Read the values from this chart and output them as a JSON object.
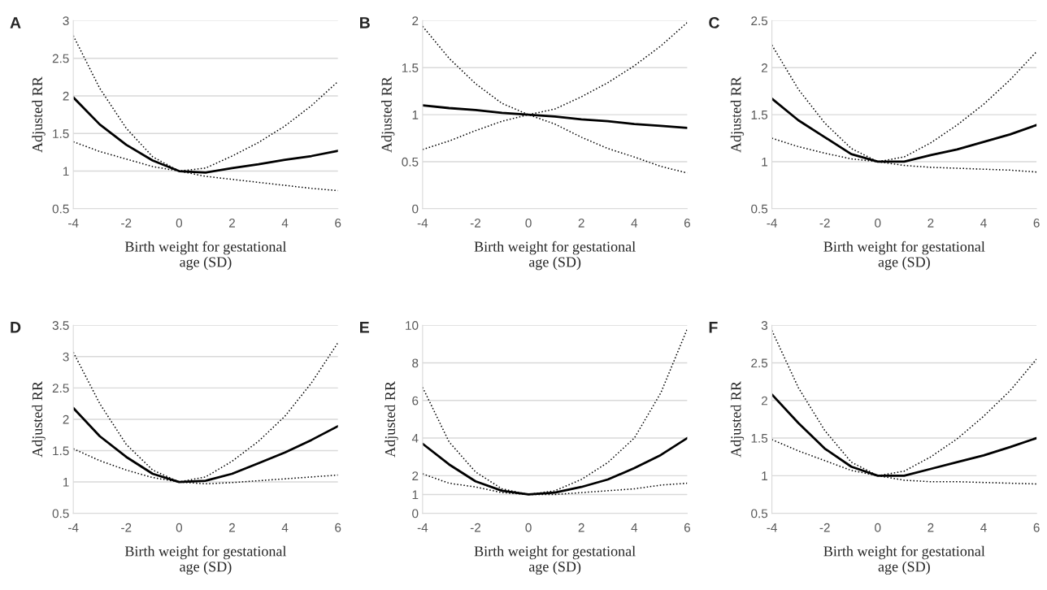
{
  "chart_data": [
    {
      "type": "line",
      "title": "A",
      "xlabel": "Birth weight for gestational\nage (SD)",
      "ylabel": "Adjusted RR",
      "x": [
        -4,
        -3,
        -2,
        -1,
        0,
        1,
        2,
        3,
        4,
        5,
        6
      ],
      "xlim": [
        -4,
        6
      ],
      "xticks": [
        -4,
        -2,
        0,
        2,
        4,
        6
      ],
      "ylim": [
        0.5,
        3
      ],
      "yticks": [
        0.5,
        1,
        1.5,
        2,
        2.5,
        3
      ],
      "grid": "y",
      "series": [
        {
          "color": "#000000",
          "line_style": "solid",
          "values": [
            1.98,
            1.62,
            1.35,
            1.14,
            1.0,
            0.98,
            1.04,
            1.09,
            1.15,
            1.2,
            1.27
          ]
        },
        {
          "color": "#000000",
          "line_style": "dotted",
          "values": [
            2.8,
            2.1,
            1.57,
            1.19,
            1.0,
            1.04,
            1.2,
            1.38,
            1.6,
            1.87,
            2.19
          ]
        },
        {
          "color": "#000000",
          "line_style": "dotted",
          "values": [
            1.39,
            1.26,
            1.16,
            1.06,
            1.0,
            0.93,
            0.89,
            0.85,
            0.81,
            0.77,
            0.74
          ]
        }
      ]
    },
    {
      "type": "line",
      "title": "B",
      "xlabel": "Birth weight for gestational\nage (SD)",
      "ylabel": "Adjusted RR",
      "x": [
        -4,
        -3,
        -2,
        -1,
        0,
        1,
        2,
        3,
        4,
        5,
        6
      ],
      "xlim": [
        -4,
        6
      ],
      "xticks": [
        -4,
        -2,
        0,
        2,
        4,
        6
      ],
      "ylim": [
        0,
        2
      ],
      "yticks": [
        0,
        0.5,
        1,
        1.5,
        2
      ],
      "grid": "y",
      "series": [
        {
          "color": "#000000",
          "line_style": "solid",
          "values": [
            1.1,
            1.07,
            1.05,
            1.02,
            1.0,
            0.98,
            0.95,
            0.93,
            0.9,
            0.88,
            0.86
          ]
        },
        {
          "color": "#000000",
          "line_style": "dotted",
          "values": [
            1.94,
            1.6,
            1.33,
            1.12,
            1.0,
            0.9,
            0.76,
            0.64,
            0.55,
            0.45,
            0.38
          ]
        },
        {
          "color": "#000000",
          "line_style": "dotted",
          "values": [
            0.63,
            0.72,
            0.83,
            0.93,
            1.0,
            1.06,
            1.19,
            1.34,
            1.52,
            1.73,
            1.98
          ]
        }
      ]
    },
    {
      "type": "line",
      "title": "C",
      "xlabel": "Birth weight for gestational\nage (SD)",
      "ylabel": "Adjusted RR",
      "x": [
        -4,
        -3,
        -2,
        -1,
        0,
        1,
        2,
        3,
        4,
        5,
        6
      ],
      "xlim": [
        -4,
        6
      ],
      "xticks": [
        -4,
        -2,
        0,
        2,
        4,
        6
      ],
      "ylim": [
        0.5,
        2.5
      ],
      "yticks": [
        0.5,
        1,
        1.5,
        2,
        2.5
      ],
      "grid": "y",
      "series": [
        {
          "color": "#000000",
          "line_style": "solid",
          "values": [
            1.67,
            1.44,
            1.26,
            1.08,
            1.0,
            1.0,
            1.07,
            1.13,
            1.21,
            1.29,
            1.39
          ]
        },
        {
          "color": "#000000",
          "line_style": "dotted",
          "values": [
            2.24,
            1.77,
            1.41,
            1.14,
            1.0,
            1.05,
            1.2,
            1.39,
            1.61,
            1.87,
            2.17
          ]
        },
        {
          "color": "#000000",
          "line_style": "dotted",
          "values": [
            1.25,
            1.16,
            1.09,
            1.03,
            1.0,
            0.96,
            0.94,
            0.93,
            0.92,
            0.91,
            0.89
          ]
        }
      ]
    },
    {
      "type": "line",
      "title": "D",
      "xlabel": "Birth weight for gestational\nage (SD)",
      "ylabel": "Adjusted RR",
      "x": [
        -4,
        -3,
        -2,
        -1,
        0,
        1,
        2,
        3,
        4,
        5,
        6
      ],
      "xlim": [
        -4,
        6
      ],
      "xticks": [
        -4,
        -2,
        0,
        2,
        4,
        6
      ],
      "ylim": [
        0.5,
        3.5
      ],
      "yticks": [
        0.5,
        1,
        1.5,
        2,
        2.5,
        3,
        3.5
      ],
      "grid": "y",
      "series": [
        {
          "color": "#000000",
          "line_style": "solid",
          "values": [
            2.18,
            1.73,
            1.4,
            1.13,
            1.0,
            1.02,
            1.13,
            1.3,
            1.47,
            1.67,
            1.89
          ]
        },
        {
          "color": "#000000",
          "line_style": "dotted",
          "values": [
            3.07,
            2.25,
            1.6,
            1.19,
            1.0,
            1.08,
            1.33,
            1.65,
            2.05,
            2.58,
            3.22
          ]
        },
        {
          "color": "#000000",
          "line_style": "dotted",
          "values": [
            1.53,
            1.34,
            1.19,
            1.07,
            1.0,
            0.97,
            0.99,
            1.02,
            1.05,
            1.08,
            1.11
          ]
        }
      ]
    },
    {
      "type": "line",
      "title": "E",
      "xlabel": "Birth weight for gestational\nage (SD)",
      "ylabel": "Adjusted RR",
      "x": [
        -4,
        -3,
        -2,
        -1,
        0,
        1,
        2,
        3,
        4,
        5,
        6
      ],
      "xlim": [
        -4,
        6
      ],
      "xticks": [
        -4,
        -2,
        0,
        2,
        4,
        6
      ],
      "ylim": [
        0,
        10
      ],
      "yticks": [
        0,
        1,
        2,
        4,
        6,
        8,
        10
      ],
      "grid": "y",
      "series": [
        {
          "color": "#000000",
          "line_style": "solid",
          "values": [
            3.7,
            2.6,
            1.7,
            1.2,
            1.0,
            1.1,
            1.4,
            1.8,
            2.4,
            3.1,
            4.0
          ]
        },
        {
          "color": "#000000",
          "line_style": "dotted",
          "values": [
            6.7,
            3.8,
            2.2,
            1.3,
            1.0,
            1.2,
            1.8,
            2.7,
            4.0,
            6.4,
            9.8
          ]
        },
        {
          "color": "#000000",
          "line_style": "dotted",
          "values": [
            2.1,
            1.6,
            1.4,
            1.1,
            1.0,
            1.0,
            1.1,
            1.2,
            1.3,
            1.5,
            1.6
          ]
        }
      ]
    },
    {
      "type": "line",
      "title": "F",
      "xlabel": "Birth weight for gestational\nage (SD)",
      "ylabel": "Adjusted RR",
      "x": [
        -4,
        -3,
        -2,
        -1,
        0,
        1,
        2,
        3,
        4,
        5,
        6
      ],
      "xlim": [
        -4,
        6
      ],
      "xticks": [
        -4,
        -2,
        0,
        2,
        4,
        6
      ],
      "ylim": [
        0.5,
        3
      ],
      "yticks": [
        0.5,
        1,
        1.5,
        2,
        2.5,
        3
      ],
      "grid": "y",
      "series": [
        {
          "color": "#000000",
          "line_style": "solid",
          "values": [
            2.08,
            1.7,
            1.36,
            1.12,
            1.0,
            1.0,
            1.09,
            1.18,
            1.27,
            1.38,
            1.5
          ]
        },
        {
          "color": "#000000",
          "line_style": "dotted",
          "values": [
            2.93,
            2.17,
            1.6,
            1.18,
            1.0,
            1.06,
            1.25,
            1.49,
            1.79,
            2.13,
            2.55
          ]
        },
        {
          "color": "#000000",
          "line_style": "dotted",
          "values": [
            1.48,
            1.33,
            1.2,
            1.07,
            1.0,
            0.94,
            0.92,
            0.92,
            0.91,
            0.9,
            0.89
          ]
        }
      ]
    }
  ]
}
